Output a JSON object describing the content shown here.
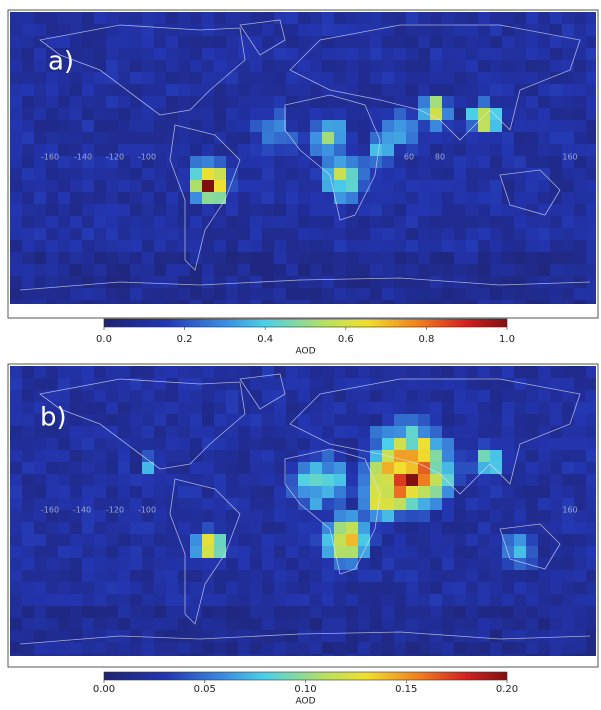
{
  "panels": [
    {
      "label": "a)",
      "lon_labels": [
        "-160",
        "-140",
        "-120",
        "-100",
        "60",
        "80",
        "160"
      ],
      "colorbar": {
        "title": "AOD",
        "lim": [
          0,
          1
        ],
        "ticks": [
          {
            "value": 0,
            "label": "0.0"
          },
          0.2,
          0.4,
          0.6,
          0.8,
          {
            "value": 1,
            "label": "1.0"
          }
        ]
      }
    },
    {
      "label": "b)",
      "lon_labels": [
        "-160",
        "-140",
        "-120",
        "-100",
        "160"
      ],
      "colorbar": {
        "title": "AOD",
        "lim": [
          0,
          0.2
        ],
        "ticks": [
          {
            "value": 0,
            "label": "0.00"
          },
          0.05,
          {
            "value": 0.1,
            "label": "0.10"
          },
          0.15,
          {
            "value": 0.2,
            "label": "0.20"
          }
        ]
      }
    }
  ]
}
